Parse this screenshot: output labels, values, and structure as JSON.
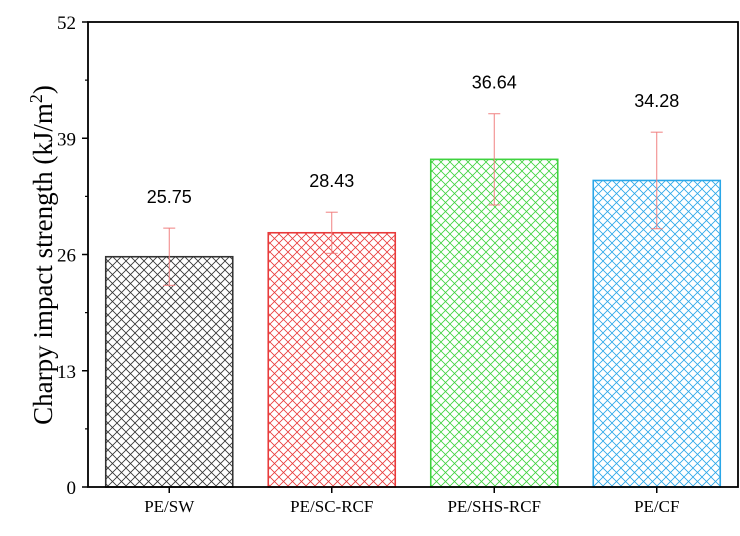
{
  "chart_data": {
    "type": "bar",
    "title": "",
    "xlabel": "",
    "ylabel": "Charpy impact strength (kJ/m",
    "ylabel_superscript": "2",
    "ylabel_suffix": ")",
    "ylim": [
      0,
      52
    ],
    "yticks": [
      0,
      13,
      26,
      39,
      52
    ],
    "grid": false,
    "pattern": "crosshatch",
    "categories": [
      "PE/SW",
      "PE/SC-RCF",
      "PE/SHS-RCF",
      "PE/CF"
    ],
    "values": [
      25.75,
      28.43,
      36.64,
      34.28
    ],
    "value_labels": [
      "25.75",
      "28.43",
      "36.64",
      "34.28"
    ],
    "errors": [
      3.2,
      2.3,
      5.1,
      5.4
    ],
    "colors": [
      "#333333",
      "#e83b3b",
      "#3fd23f",
      "#2aa7e8"
    ],
    "error_bar_color": "#f08080"
  }
}
